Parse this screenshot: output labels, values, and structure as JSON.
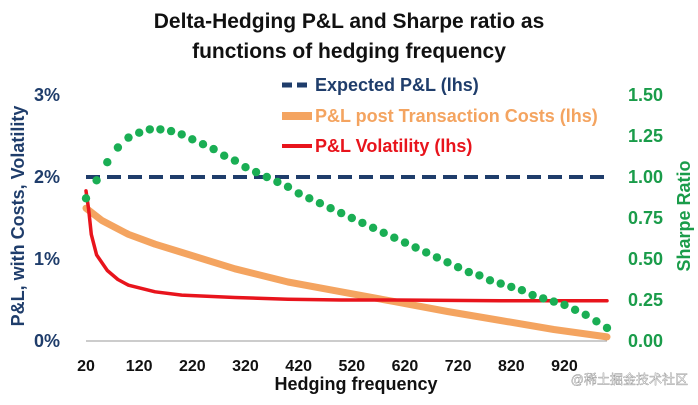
{
  "chart_data": {
    "type": "line",
    "title_lines": [
      "Delta-Hedging P&L and Sharpe ratio as",
      "functions of hedging frequency"
    ],
    "xlabel": "Hedging frequency",
    "ylabel_left": "P&L, with Costs, Volatility",
    "ylabel_right": "Sharpe Ratio",
    "x_range": [
      20,
      1000
    ],
    "x_ticks": [
      20,
      120,
      220,
      320,
      420,
      520,
      620,
      720,
      820,
      920
    ],
    "x_tick_labels": [
      "20",
      "120",
      "220",
      "320",
      "420",
      "520",
      "620",
      "720",
      "820",
      "920"
    ],
    "ylim_left": [
      0,
      3
    ],
    "y_ticks_left": [
      0,
      1,
      2,
      3
    ],
    "y_tick_labels_left": [
      "0%",
      "1%",
      "2%",
      "3%"
    ],
    "ylim_right": [
      0,
      1.5
    ],
    "y_ticks_right": [
      0,
      0.25,
      0.5,
      0.75,
      1.0,
      1.25,
      1.5
    ],
    "y_tick_labels_right": [
      "0.00",
      "0.25",
      "0.50",
      "0.75",
      "1.00",
      "1.25",
      "1.50"
    ],
    "series": [
      {
        "name": "Expected P&L (lhs)",
        "axis": "left",
        "style": "dashed",
        "color": "#1f3d6b",
        "x": [
          20,
          1000
        ],
        "values": [
          2.0,
          2.0
        ]
      },
      {
        "name": "P&L post Transaction Costs (lhs)",
        "axis": "left",
        "style": "solid-thick",
        "color": "#f4a460",
        "x": [
          20,
          50,
          100,
          150,
          200,
          300,
          400,
          500,
          600,
          700,
          800,
          900,
          1000
        ],
        "values": [
          1.62,
          1.47,
          1.3,
          1.18,
          1.08,
          0.88,
          0.72,
          0.6,
          0.48,
          0.36,
          0.25,
          0.14,
          0.05
        ]
      },
      {
        "name": "P&L Volatility (lhs)",
        "axis": "left",
        "style": "solid",
        "color": "#e8141c",
        "x": [
          20,
          25,
          30,
          40,
          60,
          80,
          100,
          150,
          200,
          300,
          400,
          500,
          600,
          800,
          1000
        ],
        "values": [
          1.83,
          1.6,
          1.3,
          1.05,
          0.86,
          0.75,
          0.68,
          0.6,
          0.56,
          0.53,
          0.51,
          0.5,
          0.5,
          0.49,
          0.49
        ]
      },
      {
        "name": "Sharpe Ratio (rhs)",
        "axis": "right",
        "style": "dotted",
        "color": "#1aae54",
        "x": [
          20,
          40,
          60,
          80,
          100,
          120,
          140,
          160,
          180,
          200,
          220,
          240,
          260,
          280,
          300,
          320,
          340,
          360,
          380,
          400,
          420,
          440,
          460,
          480,
          500,
          520,
          540,
          560,
          580,
          600,
          620,
          640,
          660,
          680,
          700,
          720,
          740,
          760,
          780,
          800,
          820,
          840,
          860,
          880,
          900,
          920,
          940,
          960,
          980,
          1000
        ],
        "values": [
          0.87,
          0.98,
          1.09,
          1.18,
          1.24,
          1.27,
          1.29,
          1.29,
          1.28,
          1.26,
          1.23,
          1.2,
          1.17,
          1.13,
          1.1,
          1.06,
          1.03,
          1.0,
          0.97,
          0.94,
          0.9,
          0.87,
          0.84,
          0.81,
          0.78,
          0.75,
          0.72,
          0.69,
          0.66,
          0.63,
          0.6,
          0.57,
          0.54,
          0.51,
          0.48,
          0.45,
          0.42,
          0.4,
          0.37,
          0.35,
          0.33,
          0.31,
          0.28,
          0.26,
          0.24,
          0.22,
          0.19,
          0.16,
          0.12,
          0.08
        ]
      }
    ],
    "legend": [
      "Expected P&L (lhs)",
      "P&L post Transaction Costs (lhs)",
      "P&L Volatility (lhs)"
    ],
    "legend_position": "top-center"
  },
  "watermark": "@稀土掘金技术社区",
  "colors": {
    "left_axis": "#1f3d6b",
    "right_axis": "#1a9c4a",
    "expected": "#1f3d6b",
    "post_costs": "#f4a460",
    "volatility": "#e8141c",
    "sharpe": "#1aae54"
  }
}
